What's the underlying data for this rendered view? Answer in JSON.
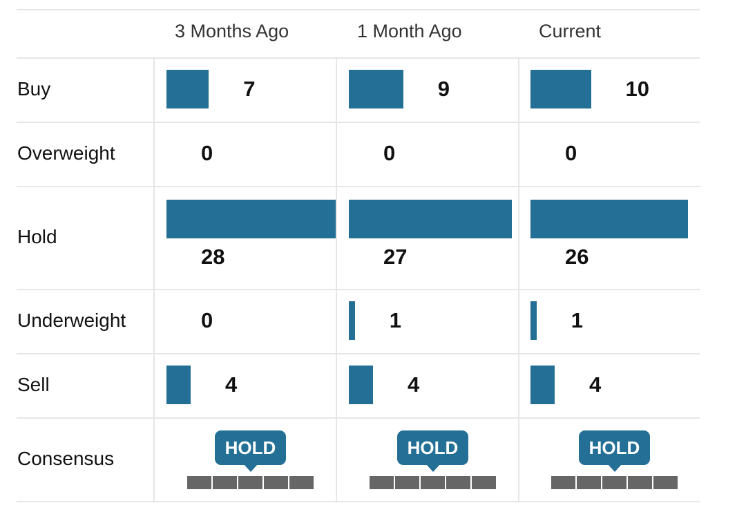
{
  "colors": {
    "bar": "#236f96",
    "gauge": "#666666",
    "grid": "#e6e6e6"
  },
  "chart_data": {
    "type": "table",
    "columns": [
      "3 Months Ago",
      "1 Month Ago",
      "Current"
    ],
    "rows": [
      {
        "label": "Buy",
        "values": [
          7,
          9,
          10
        ]
      },
      {
        "label": "Overweight",
        "values": [
          0,
          0,
          0
        ]
      },
      {
        "label": "Hold",
        "values": [
          28,
          27,
          26
        ]
      },
      {
        "label": "Underweight",
        "values": [
          0,
          1,
          1
        ]
      },
      {
        "label": "Sell",
        "values": [
          4,
          4,
          4
        ]
      }
    ],
    "consensus": {
      "label": "Consensus",
      "values": [
        "HOLD",
        "HOLD",
        "HOLD"
      ],
      "gauge_segments": 5,
      "gauge_position": 3
    }
  }
}
